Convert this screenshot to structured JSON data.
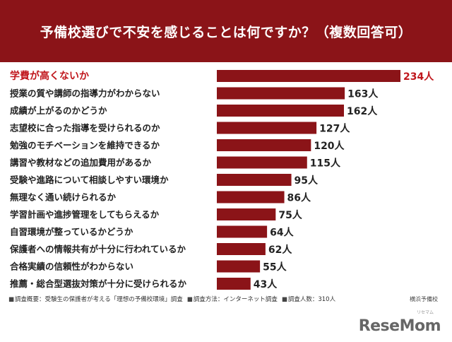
{
  "header": {
    "title": "予備校選びで不安を感じることは何ですか？（複数回答可）"
  },
  "footer": {
    "items": [
      "調査概要：受験生の保護者が考える「理想の予備校環境」調査",
      "調査方法：インターネット調査",
      "調査人数：310人"
    ],
    "source": "横浜予備校"
  },
  "brand": {
    "name": "ReseMom",
    "sub": "リセマム"
  },
  "colors": {
    "header_bg": "#8b1418",
    "bar": "#8b1418",
    "highlight_text": "#c0161c"
  },
  "chart_data": {
    "type": "bar",
    "orientation": "horizontal",
    "title": "予備校選びで不安を感じることは何ですか？（複数回答可）",
    "unit": "人",
    "categories": [
      "学費が高くないか",
      "授業の質や講師の指導力がわからない",
      "成績が上がるのかどうか",
      "志望校に合った指導を受けられるのか",
      "勉強のモチベーションを維持できるか",
      "講習や教材などの追加費用があるか",
      "受験や進路について相談しやすい環境か",
      "無理なく通い続けられるか",
      "学習計画や進捗管理をしてもらえるか",
      "自習環境が整っているかどうか",
      "保護者への情報共有が十分に行われているか",
      "合格実績の信頼性がわからない",
      "推薦・総合型選抜対策が十分に受けられるか"
    ],
    "values": [
      234,
      163,
      162,
      127,
      120,
      115,
      95,
      86,
      75,
      64,
      62,
      55,
      43
    ],
    "value_labels": [
      "234人",
      "163人",
      "162人",
      "127人",
      "120人",
      "115人",
      "95人",
      "86人",
      "75人",
      "64人",
      "62人",
      "55人",
      "43人"
    ],
    "highlight_index": 0,
    "xlim": [
      0,
      234
    ],
    "grid": false
  }
}
